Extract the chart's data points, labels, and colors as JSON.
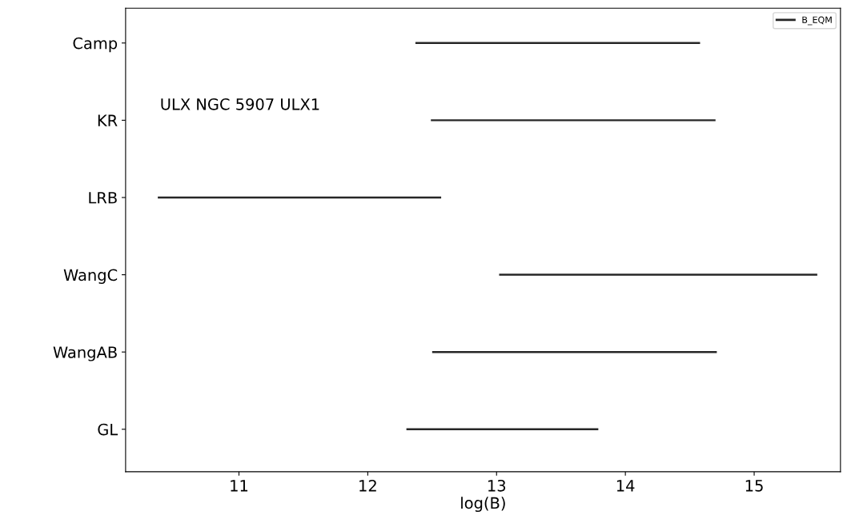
{
  "chart_data": {
    "type": "bar",
    "orientation": "horizontal",
    "xlabel": "log(B)",
    "categories": [
      "Camp",
      "KR",
      "LRB",
      "WangC",
      "WangAB",
      "GL"
    ],
    "series": [
      {
        "name": "B_EQM",
        "color": "#262626",
        "base": [
          12.37,
          12.49,
          10.37,
          13.02,
          12.5,
          12.3
        ],
        "values": [
          2.21,
          2.21,
          2.2,
          2.47,
          2.21,
          1.49
        ]
      }
    ],
    "xlim": [
      10.12,
      15.67
    ],
    "xticks": [
      11,
      12,
      13,
      14,
      15
    ],
    "annotations": [
      "ULX NGC 5907 ULX1"
    ],
    "legend": "top right",
    "grid": false
  }
}
